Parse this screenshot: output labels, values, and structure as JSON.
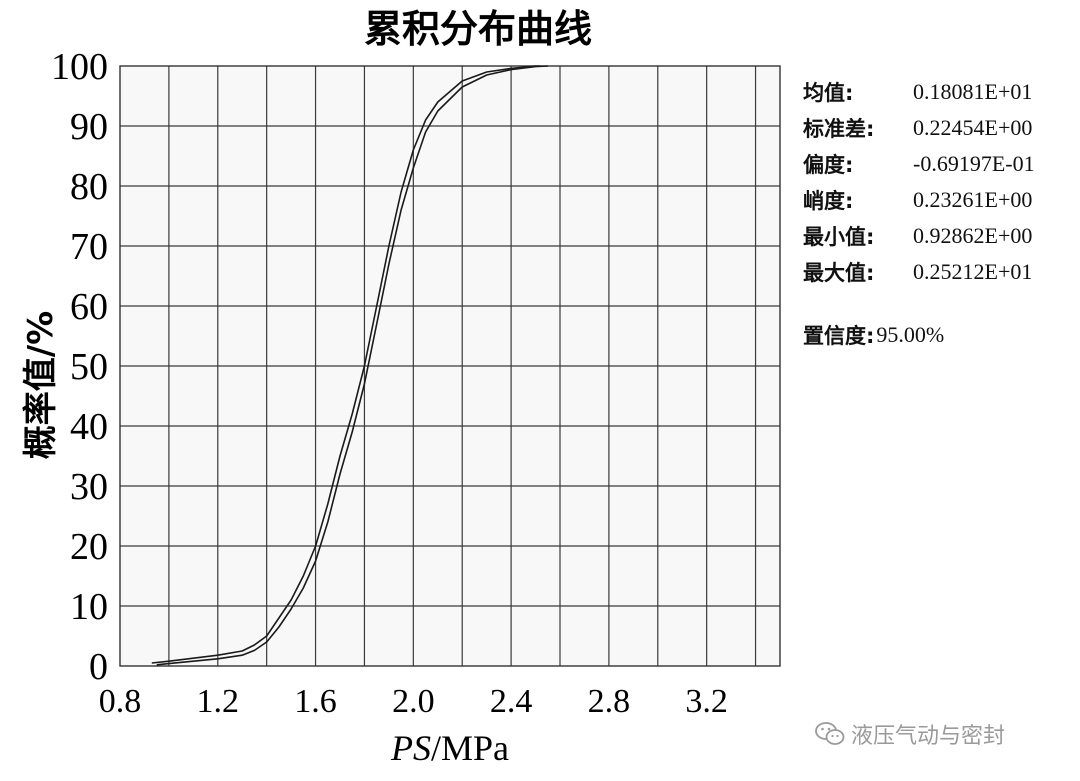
{
  "chart_data": {
    "type": "line",
    "title": "累积分布曲线",
    "xlabel_italic": "PS",
    "xlabel_unit": "/MPa",
    "ylabel": "概率值/%",
    "xlim": [
      0.8,
      3.5
    ],
    "ylim": [
      0,
      100
    ],
    "x_ticks": [
      "0.8",
      "1.2",
      "1.6",
      "2.0",
      "2.4",
      "2.8",
      "3.2"
    ],
    "y_ticks": [
      "0",
      "10",
      "20",
      "30",
      "40",
      "50",
      "60",
      "70",
      "80",
      "90",
      "100"
    ],
    "grid": true,
    "series": [
      {
        "x": [
          0.93,
          1.0,
          1.1,
          1.2,
          1.3,
          1.35,
          1.4,
          1.45,
          1.5,
          1.55,
          1.6,
          1.65,
          1.7,
          1.75,
          1.8,
          1.85,
          1.9,
          1.95,
          2.0,
          2.05,
          2.1,
          2.2,
          2.3,
          2.4,
          2.5,
          2.52
        ],
        "values": [
          0.5,
          0.8,
          1.3,
          1.8,
          2.5,
          3.5,
          5,
          8,
          11,
          15,
          20,
          27,
          35,
          42,
          50,
          60,
          70,
          79,
          86,
          91,
          94,
          97.5,
          99,
          99.6,
          100,
          100
        ]
      },
      {
        "x": [
          0.95,
          1.0,
          1.1,
          1.2,
          1.3,
          1.35,
          1.4,
          1.45,
          1.5,
          1.55,
          1.6,
          1.65,
          1.7,
          1.75,
          1.8,
          1.85,
          1.9,
          1.95,
          2.0,
          2.05,
          2.1,
          2.2,
          2.3,
          2.4,
          2.5,
          2.55
        ],
        "values": [
          0.2,
          0.4,
          0.8,
          1.2,
          1.8,
          2.6,
          4,
          6.5,
          9.5,
          13,
          17.5,
          24,
          32,
          39,
          47,
          57,
          67,
          76,
          83,
          89,
          92.5,
          96.5,
          98.5,
          99.4,
          99.9,
          100
        ]
      }
    ]
  },
  "stats": [
    {
      "label": "均值:",
      "value": "0.18081E+01"
    },
    {
      "label": "标准差:",
      "value": "0.22454E+00"
    },
    {
      "label": "偏度:",
      "value": "-0.69197E-01"
    },
    {
      "label": "峭度:",
      "value": "0.23261E+00"
    },
    {
      "label": "最小值:",
      "value": "0.92862E+00"
    },
    {
      "label": "最大值:",
      "value": "0.25212E+01"
    }
  ],
  "confidence": {
    "label": "置信度:",
    "value": "95.00%"
  },
  "watermark": {
    "text": "液压气动与密封",
    "icon": "wechat-icon"
  }
}
